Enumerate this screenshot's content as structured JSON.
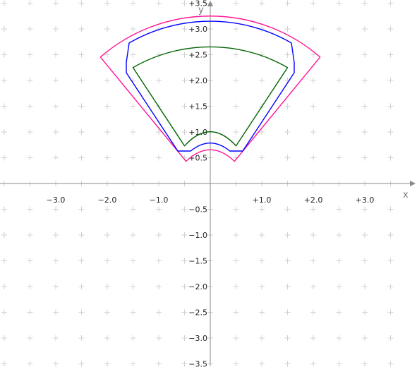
{
  "chart_data": {
    "type": "line",
    "title": "",
    "xlabel": "x",
    "ylabel": "y",
    "xlim": [
      -4.0,
      4.0
    ],
    "ylim": [
      -3.8,
      3.8
    ],
    "grid": true,
    "grid_marker": "+",
    "colors": {
      "axis": "#8a8a8a",
      "grid": "#d2d2d2",
      "outer": "#ff1493",
      "middle": "#0000ff",
      "inner": "#006400"
    },
    "x_ticks": [
      {
        "value": -3.0,
        "label": "−3.0"
      },
      {
        "value": -2.0,
        "label": "−2.0"
      },
      {
        "value": -1.0,
        "label": "−1.0"
      },
      {
        "value": 1.0,
        "label": "+1.0"
      },
      {
        "value": 2.0,
        "label": "+2.0"
      },
      {
        "value": 3.0,
        "label": "+3.0"
      }
    ],
    "y_ticks": [
      {
        "value": 3.5,
        "label": "+3.5"
      },
      {
        "value": 3.0,
        "label": "+3.0"
      },
      {
        "value": 2.5,
        "label": "+2.5"
      },
      {
        "value": 2.0,
        "label": "+2.0"
      },
      {
        "value": 1.5,
        "label": "+1.5"
      },
      {
        "value": 1.0,
        "label": "+1.0"
      },
      {
        "value": 0.5,
        "label": "+0.5"
      },
      {
        "value": -0.5,
        "label": "−0.5"
      },
      {
        "value": -1.0,
        "label": "−1.0"
      },
      {
        "value": -1.5,
        "label": "−1.5"
      },
      {
        "value": -2.0,
        "label": "−2.0"
      },
      {
        "value": -2.5,
        "label": "−2.5"
      },
      {
        "value": -3.0,
        "label": "−3.0"
      },
      {
        "value": -3.5,
        "label": "−3.5"
      }
    ],
    "series": [
      {
        "key": "outer",
        "color": "#ff1493",
        "shape": {
          "kind": "annular-sector",
          "outer_radius": 3.25,
          "outer_half_angle_deg": 41,
          "inner_arc_center_y": 0.25,
          "inner_arc_top_y": 0.7,
          "corner_offset_x": 0.12,
          "bottom_x": 0.47,
          "bottom_y": 0.43,
          "side_end_x": 2.12,
          "side_end_y": 1.96
        }
      },
      {
        "key": "middle",
        "color": "#0000ff",
        "shape": {
          "kind": "offset-sector",
          "top_arc_y": 3.15,
          "top_half_angle_deg": 30,
          "side_top_x": 1.63,
          "side_top_y": 2.35,
          "side_mid_y": 2.15,
          "bottom_x": 0.63,
          "bottom_y": 0.63,
          "notch_x": 0.38,
          "notch_y": 0.63,
          "inner_arc_top_y": 0.84
        }
      },
      {
        "key": "inner",
        "color": "#006400",
        "shape": {
          "kind": "annular-sector",
          "outer_radius": 3.0,
          "outer_half_angle_deg": 30,
          "side_end_x": 1.5,
          "side_end_y": 2.25,
          "bottom_x": 0.5,
          "bottom_y": 0.73,
          "inner_arc_top_y": 1.0,
          "inner_arc_radius": 0.55
        }
      }
    ]
  }
}
